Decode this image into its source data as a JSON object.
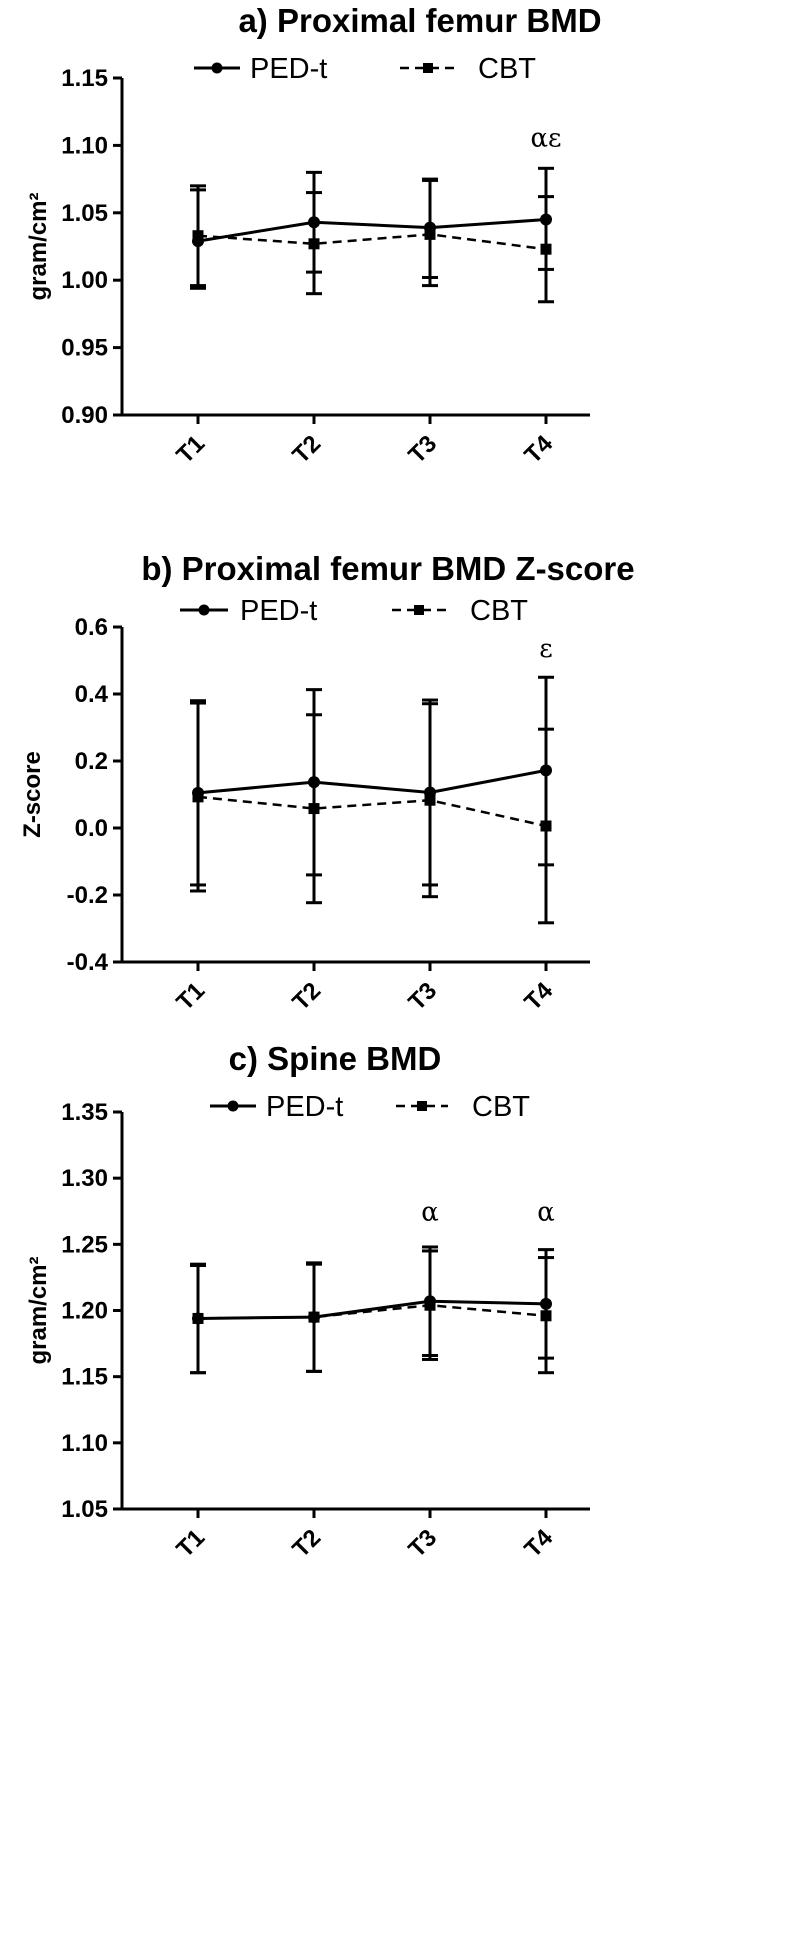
{
  "chart_data": [
    {
      "type": "line",
      "title": "a) Proximal femur BMD",
      "ylabel": "gram/cm²",
      "categories": [
        "T1",
        "T2",
        "T3",
        "T4"
      ],
      "ylim": [
        0.9,
        1.15
      ],
      "yticks": [
        "0.90",
        "0.95",
        "1.00",
        "1.05",
        "1.10",
        "1.15"
      ],
      "legend_position": "top",
      "series": [
        {
          "name": "PED-t",
          "style": "solid",
          "marker": "circle",
          "values": [
            1.029,
            1.043,
            1.039,
            1.045
          ],
          "err_low": [
            0.994,
            1.006,
            1.002,
            1.008
          ],
          "err_high": [
            1.067,
            1.08,
            1.075,
            1.083
          ]
        },
        {
          "name": "CBT",
          "style": "dashed",
          "marker": "square",
          "values": [
            1.033,
            1.027,
            1.034,
            1.023
          ],
          "err_low": [
            0.996,
            0.99,
            0.996,
            0.984
          ],
          "err_high": [
            1.07,
            1.065,
            1.074,
            1.062
          ]
        }
      ],
      "annotations": [
        {
          "category": "T4",
          "text": "αε",
          "y": 1.099
        }
      ]
    },
    {
      "type": "line",
      "title": "b) Proximal femur BMD Z-score",
      "ylabel": "Z-score",
      "categories": [
        "T1",
        "T2",
        "T3",
        "T4"
      ],
      "ylim": [
        -0.4,
        0.6
      ],
      "yticks": [
        "-0.4",
        "-0.2",
        "0.0",
        "0.2",
        "0.4",
        "0.6"
      ],
      "legend_position": "top",
      "series": [
        {
          "name": "PED-t",
          "style": "solid",
          "marker": "circle",
          "values": [
            0.105,
            0.137,
            0.106,
            0.172
          ],
          "err_low": [
            -0.17,
            -0.14,
            -0.17,
            -0.11
          ],
          "err_high": [
            0.38,
            0.413,
            0.382,
            0.45
          ]
        },
        {
          "name": "CBT",
          "style": "dashed",
          "marker": "square",
          "values": [
            0.093,
            0.058,
            0.083,
            0.006
          ],
          "err_low": [
            -0.188,
            -0.223,
            -0.205,
            -0.283
          ],
          "err_high": [
            0.373,
            0.338,
            0.371,
            0.295
          ]
        }
      ],
      "annotations": [
        {
          "category": "T4",
          "text": "ε",
          "y": 0.51
        }
      ]
    },
    {
      "type": "line",
      "title": "c) Spine BMD",
      "ylabel": "gram/cm²",
      "categories": [
        "T1",
        "T2",
        "T3",
        "T4"
      ],
      "ylim": [
        1.05,
        1.35
      ],
      "yticks": [
        "1.05",
        "1.10",
        "1.15",
        "1.20",
        "1.25",
        "1.30",
        "1.35"
      ],
      "legend_position": "top",
      "series": [
        {
          "name": "PED-t",
          "style": "solid",
          "marker": "circle",
          "values": [
            1.194,
            1.195,
            1.207,
            1.205
          ],
          "err_low": [
            1.153,
            1.154,
            1.166,
            1.164
          ],
          "err_high": [
            1.235,
            1.236,
            1.248,
            1.246
          ]
        },
        {
          "name": "CBT",
          "style": "dashed",
          "marker": "square",
          "values": [
            1.194,
            1.195,
            1.204,
            1.196
          ],
          "err_low": [
            1.153,
            1.154,
            1.163,
            1.153
          ],
          "err_high": [
            1.234,
            1.235,
            1.245,
            1.24
          ]
        }
      ],
      "annotations": [
        {
          "category": "T3",
          "text": "α",
          "y": 1.268
        },
        {
          "category": "T4",
          "text": "α",
          "y": 1.268
        }
      ]
    }
  ]
}
